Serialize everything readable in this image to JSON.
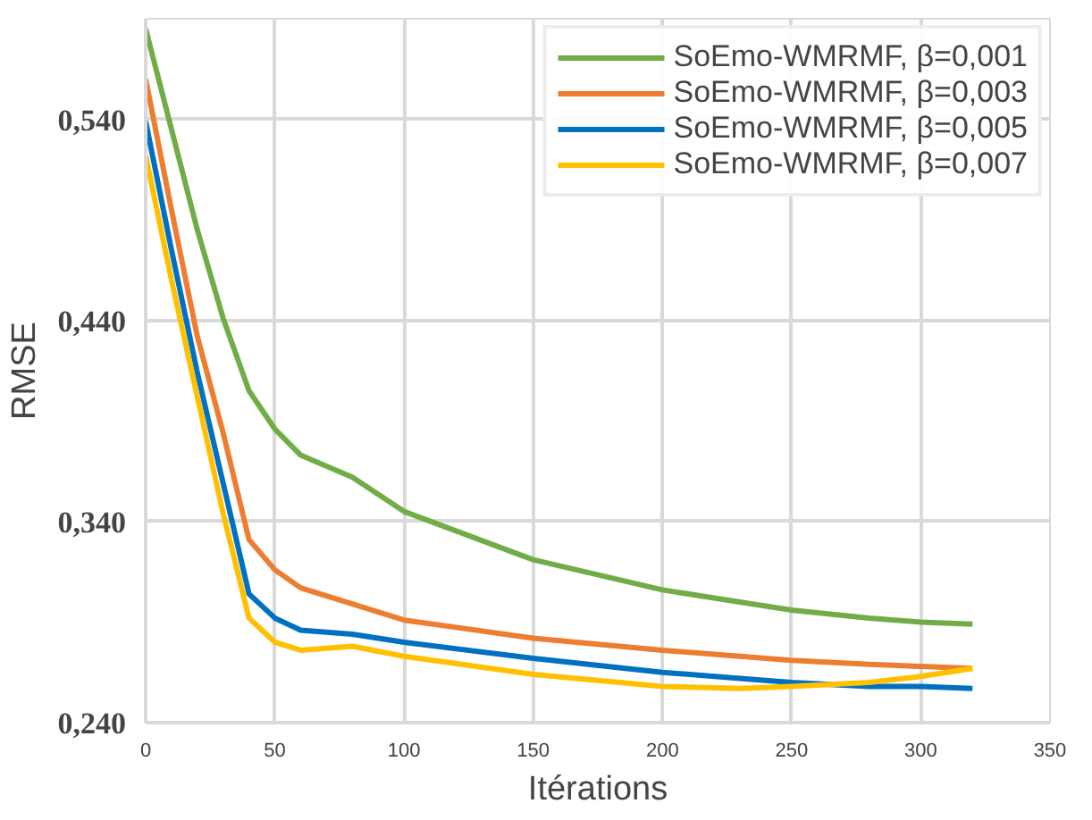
{
  "chart_data": {
    "type": "line",
    "xlabel": "Itérations",
    "ylabel": "RMSE",
    "x": [
      0,
      10,
      20,
      30,
      40,
      50,
      60,
      80,
      100,
      150,
      200,
      230,
      250,
      280,
      300,
      320
    ],
    "xlim": [
      0,
      350
    ],
    "xticks": [
      0,
      50,
      100,
      150,
      200,
      250,
      300,
      350
    ],
    "ylim": [
      0.24,
      0.59
    ],
    "yticks": [
      {
        "value": 0.24,
        "label": "0,240"
      },
      {
        "value": 0.34,
        "label": "0,340"
      },
      {
        "value": 0.44,
        "label": "0,440"
      },
      {
        "value": 0.54,
        "label": "0,540"
      }
    ],
    "grid": true,
    "legend": "top right",
    "marker": "none",
    "line_style": "solid",
    "series": [
      {
        "name": "SoEmo-WMRMF, β=0,001",
        "color": "#70ad47",
        "values": [
          0.585,
          0.535,
          0.485,
          0.441,
          0.405,
          0.386,
          0.373,
          0.362,
          0.345,
          0.321,
          0.306,
          0.3,
          0.296,
          0.292,
          0.29,
          0.289
        ]
      },
      {
        "name": "SoEmo-WMRMF, β=0,003",
        "color": "#ed7d31",
        "values": [
          0.56,
          0.495,
          0.432,
          0.384,
          0.331,
          0.316,
          0.307,
          0.299,
          0.291,
          0.282,
          0.276,
          0.273,
          0.271,
          0.269,
          0.268,
          0.267
        ]
      },
      {
        "name": "SoEmo-WMRMF, β=0,005",
        "color": "#0070c0",
        "values": [
          0.539,
          0.475,
          0.414,
          0.359,
          0.304,
          0.292,
          0.286,
          0.284,
          0.28,
          0.272,
          0.265,
          0.262,
          0.26,
          0.258,
          0.258,
          0.257
        ]
      },
      {
        "name": "SoEmo-WMRMF, β=0,007",
        "color": "#ffc000",
        "values": [
          0.522,
          0.46,
          0.402,
          0.344,
          0.292,
          0.28,
          0.276,
          0.278,
          0.273,
          0.264,
          0.258,
          0.257,
          0.258,
          0.26,
          0.263,
          0.267
        ]
      }
    ]
  }
}
